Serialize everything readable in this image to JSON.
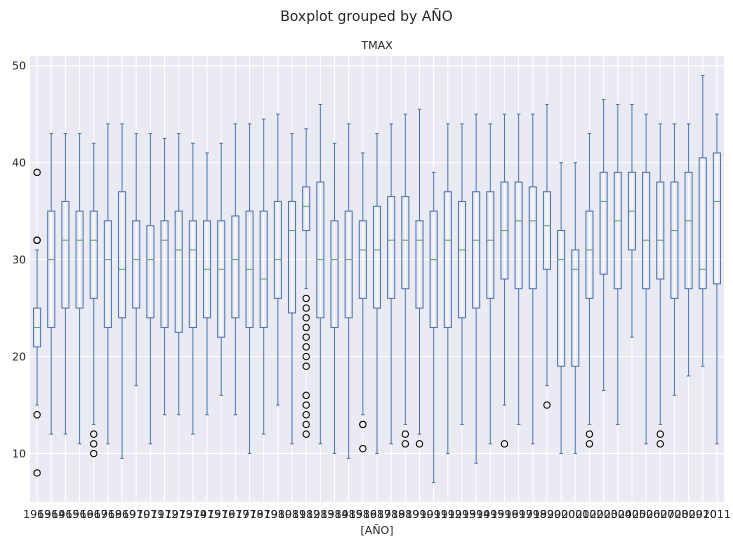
{
  "chart_data": {
    "type": "boxplot",
    "suptitle": "Boxplot grouped by AÑO",
    "title": "TMAX",
    "xlabel": "[AÑO]",
    "ylabel": "",
    "ylim": [
      5,
      51
    ],
    "yticks": [
      10,
      20,
      30,
      40,
      50
    ],
    "grid": true,
    "colors": {
      "background": "#eaeaf2",
      "grid": "#ffffff",
      "box": "#4c72b0",
      "median": "#55a868",
      "flier": "#000000"
    },
    "series": [
      {
        "label": "1963",
        "whislo": 15,
        "q1": 21,
        "med": 23,
        "q3": 25,
        "whishi": 31,
        "fliers": [
          8,
          14,
          32,
          32,
          39
        ]
      },
      {
        "label": "1964",
        "whislo": 12,
        "q1": 23,
        "med": 30,
        "q3": 35,
        "whishi": 43,
        "fliers": []
      },
      {
        "label": "1965",
        "whislo": 12,
        "q1": 25,
        "med": 32,
        "q3": 36,
        "whishi": 43,
        "fliers": []
      },
      {
        "label": "1966",
        "whislo": 11,
        "q1": 25,
        "med": 32,
        "q3": 35,
        "whishi": 43,
        "fliers": []
      },
      {
        "label": "1967",
        "whislo": 13,
        "q1": 26,
        "med": 32,
        "q3": 35,
        "whishi": 42,
        "fliers": [
          10,
          11,
          12
        ]
      },
      {
        "label": "1968",
        "whislo": 11,
        "q1": 23,
        "med": 30,
        "q3": 34,
        "whishi": 44,
        "fliers": []
      },
      {
        "label": "1969",
        "whislo": 9.5,
        "q1": 24,
        "med": 29,
        "q3": 37,
        "whishi": 44,
        "fliers": []
      },
      {
        "label": "1970",
        "whislo": 17,
        "q1": 25,
        "med": 30,
        "q3": 34,
        "whishi": 43,
        "fliers": []
      },
      {
        "label": "1971",
        "whislo": 11,
        "q1": 24,
        "med": 30,
        "q3": 33.5,
        "whishi": 43,
        "fliers": []
      },
      {
        "label": "1972",
        "whislo": 14,
        "q1": 23,
        "med": 32,
        "q3": 34,
        "whishi": 42.5,
        "fliers": []
      },
      {
        "label": "1973",
        "whislo": 14,
        "q1": 22.5,
        "med": 31,
        "q3": 35,
        "whishi": 43,
        "fliers": []
      },
      {
        "label": "1974",
        "whislo": 12,
        "q1": 23,
        "med": 31,
        "q3": 34,
        "whishi": 42,
        "fliers": []
      },
      {
        "label": "1975",
        "whislo": 14,
        "q1": 24,
        "med": 29,
        "q3": 34,
        "whishi": 41,
        "fliers": []
      },
      {
        "label": "1976",
        "whislo": 16,
        "q1": 22,
        "med": 29,
        "q3": 34,
        "whishi": 42,
        "fliers": []
      },
      {
        "label": "1977",
        "whislo": 14,
        "q1": 24,
        "med": 30,
        "q3": 34.5,
        "whishi": 44,
        "fliers": []
      },
      {
        "label": "1978",
        "whislo": 10,
        "q1": 23,
        "med": 29,
        "q3": 35,
        "whishi": 44,
        "fliers": []
      },
      {
        "label": "1979",
        "whislo": 12,
        "q1": 23,
        "med": 28,
        "q3": 35,
        "whishi": 44.5,
        "fliers": []
      },
      {
        "label": "1980",
        "whislo": 15,
        "q1": 26,
        "med": 30,
        "q3": 36,
        "whishi": 45,
        "fliers": []
      },
      {
        "label": "1981",
        "whislo": 11,
        "q1": 24.5,
        "med": 33,
        "q3": 36,
        "whishi": 43,
        "fliers": []
      },
      {
        "label": "1982",
        "whislo": 27,
        "q1": 33,
        "med": 35.5,
        "q3": 37.5,
        "whishi": 43.5,
        "fliers": [
          12,
          13,
          14,
          15,
          16,
          19,
          20,
          21,
          22,
          23,
          24,
          25,
          26
        ]
      },
      {
        "label": "1983",
        "whislo": 11,
        "q1": 24,
        "med": 30,
        "q3": 38,
        "whishi": 46,
        "fliers": []
      },
      {
        "label": "1984",
        "whislo": 10,
        "q1": 23,
        "med": 30,
        "q3": 34,
        "whishi": 42,
        "fliers": []
      },
      {
        "label": "1985",
        "whislo": 9.5,
        "q1": 24,
        "med": 30,
        "q3": 35,
        "whishi": 44,
        "fliers": []
      },
      {
        "label": "1986",
        "whislo": 14,
        "q1": 26,
        "med": 31,
        "q3": 34,
        "whishi": 41,
        "fliers": [
          10.5,
          13,
          13
        ]
      },
      {
        "label": "1987",
        "whislo": 10,
        "q1": 25,
        "med": 31,
        "q3": 35.5,
        "whishi": 43,
        "fliers": []
      },
      {
        "label": "1988",
        "whislo": 11,
        "q1": 26,
        "med": 32,
        "q3": 36.5,
        "whishi": 44,
        "fliers": []
      },
      {
        "label": "1989",
        "whislo": 13,
        "q1": 27,
        "med": 32,
        "q3": 36.5,
        "whishi": 45,
        "fliers": [
          11,
          12
        ]
      },
      {
        "label": "1990",
        "whislo": 12,
        "q1": 25,
        "med": 32,
        "q3": 34,
        "whishi": 45.5,
        "fliers": [
          11
        ]
      },
      {
        "label": "1991",
        "whislo": 7,
        "q1": 23,
        "med": 30,
        "q3": 35,
        "whishi": 39,
        "fliers": []
      },
      {
        "label": "1992",
        "whislo": 10,
        "q1": 23,
        "med": 32,
        "q3": 37,
        "whishi": 44,
        "fliers": []
      },
      {
        "label": "1993",
        "whislo": 13,
        "q1": 24,
        "med": 31,
        "q3": 36,
        "whishi": 44,
        "fliers": []
      },
      {
        "label": "1994",
        "whislo": 9,
        "q1": 25,
        "med": 32,
        "q3": 37,
        "whishi": 45,
        "fliers": []
      },
      {
        "label": "1995",
        "whislo": 11,
        "q1": 26,
        "med": 32,
        "q3": 37,
        "whishi": 44,
        "fliers": []
      },
      {
        "label": "1996",
        "whislo": 15,
        "q1": 28,
        "med": 33,
        "q3": 38,
        "whishi": 45,
        "fliers": [
          11
        ]
      },
      {
        "label": "1997",
        "whislo": 13,
        "q1": 27,
        "med": 34,
        "q3": 38,
        "whishi": 45,
        "fliers": []
      },
      {
        "label": "1998",
        "whislo": 11,
        "q1": 27,
        "med": 34,
        "q3": 37.5,
        "whishi": 45,
        "fliers": []
      },
      {
        "label": "1999",
        "whislo": 17,
        "q1": 29,
        "med": 33.5,
        "q3": 37,
        "whishi": 46,
        "fliers": [
          15
        ]
      },
      {
        "label": "2000",
        "whislo": 10,
        "q1": 19,
        "med": 30,
        "q3": 33,
        "whishi": 40,
        "fliers": []
      },
      {
        "label": "2001",
        "whislo": 10,
        "q1": 19,
        "med": 29,
        "q3": 31,
        "whishi": 40,
        "fliers": []
      },
      {
        "label": "2002",
        "whislo": 13,
        "q1": 26,
        "med": 31,
        "q3": 35,
        "whishi": 43,
        "fliers": [
          11,
          12
        ]
      },
      {
        "label": "2003",
        "whislo": 16.5,
        "q1": 28.5,
        "med": 36,
        "q3": 39,
        "whishi": 46.5,
        "fliers": []
      },
      {
        "label": "2004",
        "whislo": 13,
        "q1": 27,
        "med": 34,
        "q3": 39,
        "whishi": 46,
        "fliers": []
      },
      {
        "label": "2005",
        "whislo": 22,
        "q1": 31,
        "med": 35,
        "q3": 39,
        "whishi": 46,
        "fliers": []
      },
      {
        "label": "2006",
        "whislo": 11,
        "q1": 27,
        "med": 32,
        "q3": 39,
        "whishi": 45,
        "fliers": []
      },
      {
        "label": "2007",
        "whislo": 13,
        "q1": 28,
        "med": 32,
        "q3": 38,
        "whishi": 44,
        "fliers": [
          11,
          12
        ]
      },
      {
        "label": "2008",
        "whislo": 16,
        "q1": 26,
        "med": 33,
        "q3": 38,
        "whishi": 44,
        "fliers": []
      },
      {
        "label": "2009",
        "whislo": 18,
        "q1": 27,
        "med": 34,
        "q3": 39,
        "whishi": 44,
        "fliers": []
      },
      {
        "label": "2010",
        "whislo": 19,
        "q1": 27,
        "med": 29,
        "q3": 40.5,
        "whishi": 49,
        "fliers": []
      },
      {
        "label": "2011",
        "whislo": 11,
        "q1": 27.5,
        "med": 36,
        "q3": 41,
        "whishi": 45,
        "fliers": []
      }
    ]
  }
}
